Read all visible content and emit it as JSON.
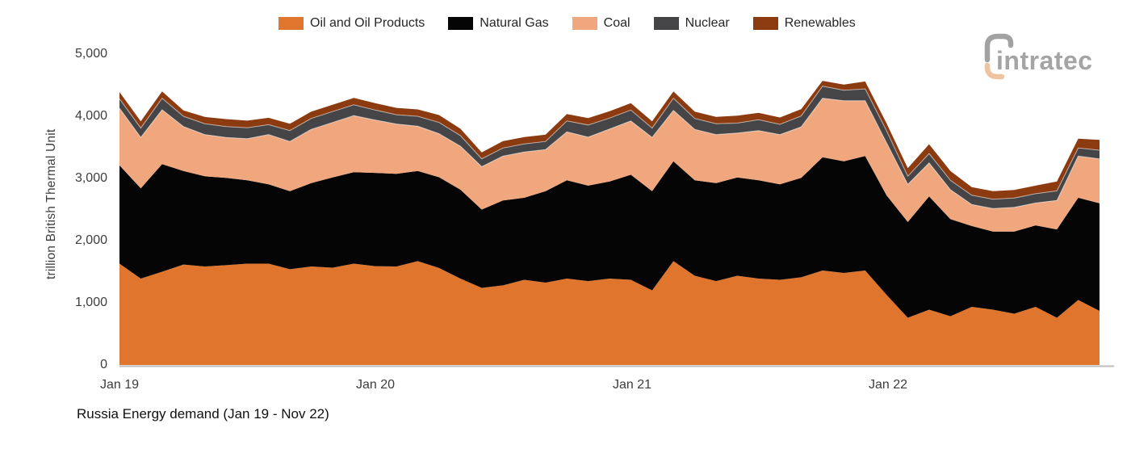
{
  "title": "Russia Energy demand (Jan 19 - Nov 22)",
  "brand": {
    "wordmark": "intratec"
  },
  "legend": [
    {
      "label": "Oil and Oil Products",
      "color": "#e0762e"
    },
    {
      "label": "Natural Gas",
      "color": "#050505"
    },
    {
      "label": "Coal",
      "color": "#f1a77e"
    },
    {
      "label": "Nuclear",
      "color": "#454548"
    },
    {
      "label": "Renewables",
      "color": "#8c3b10"
    }
  ],
  "y_axis": {
    "title": "trillion British Thermal Unit",
    "ticks": [
      "5,000",
      "4,000",
      "3,000",
      "2,000",
      "1,000",
      "0"
    ]
  },
  "x_axis": {
    "ticks": [
      "Jan 19",
      "Jan 20",
      "Jan 21",
      "Jan 22"
    ]
  },
  "chart_data": {
    "type": "area",
    "stacked": true,
    "title": "Russia Energy demand (Jan 19 - Nov 22)",
    "ylabel": "trillion British Thermal Unit",
    "ylim": [
      0,
      5000
    ],
    "grid": false,
    "legend_position": "top-center",
    "x": [
      "Jan 19",
      "Feb 19",
      "Mar 19",
      "Apr 19",
      "May 19",
      "Jun 19",
      "Jul 19",
      "Aug 19",
      "Sep 19",
      "Oct 19",
      "Nov 19",
      "Dec 19",
      "Jan 20",
      "Feb 20",
      "Mar 20",
      "Apr 20",
      "May 20",
      "Jun 20",
      "Jul 20",
      "Aug 20",
      "Sep 20",
      "Oct 20",
      "Nov 20",
      "Dec 20",
      "Jan 21",
      "Feb 21",
      "Mar 21",
      "Apr 21",
      "May 21",
      "Jun 21",
      "Jul 21",
      "Aug 21",
      "Sep 21",
      "Oct 21",
      "Nov 21",
      "Dec 21",
      "Jan 22",
      "Feb 22",
      "Mar 22",
      "Apr 22",
      "May 22",
      "Jun 22",
      "Jul 22",
      "Aug 22",
      "Sep 22",
      "Oct 22",
      "Nov 22"
    ],
    "series": [
      {
        "name": "Oil and Oil Products",
        "color": "#e0762e",
        "values": [
          1630,
          1390,
          1500,
          1615,
          1585,
          1605,
          1630,
          1630,
          1540,
          1585,
          1565,
          1630,
          1590,
          1585,
          1670,
          1560,
          1390,
          1240,
          1280,
          1370,
          1325,
          1390,
          1350,
          1390,
          1370,
          1200,
          1670,
          1435,
          1350,
          1435,
          1390,
          1370,
          1410,
          1520,
          1480,
          1520,
          1130,
          760,
          890,
          785,
          935,
          890,
          825,
          935,
          760,
          1045,
          870
        ]
      },
      {
        "name": "Natural Gas",
        "color": "#050505",
        "values": [
          1580,
          1450,
          1730,
          1505,
          1450,
          1405,
          1340,
          1275,
          1255,
          1340,
          1450,
          1470,
          1500,
          1490,
          1450,
          1460,
          1430,
          1260,
          1365,
          1320,
          1470,
          1580,
          1535,
          1560,
          1690,
          1595,
          1605,
          1535,
          1575,
          1580,
          1580,
          1535,
          1600,
          1820,
          1795,
          1840,
          1600,
          1540,
          1820,
          1560,
          1300,
          1255,
          1320,
          1310,
          1420,
          1645,
          1730
        ]
      },
      {
        "name": "Coal",
        "color": "#f1a77e",
        "values": [
          920,
          820,
          875,
          715,
          670,
          650,
          670,
          800,
          800,
          865,
          885,
          910,
          850,
          800,
          720,
          700,
          700,
          690,
          715,
          735,
          670,
          780,
          780,
          845,
          865,
          865,
          820,
          820,
          780,
          715,
          800,
          800,
          820,
          950,
          975,
          890,
          845,
          605,
          540,
          475,
          345,
          370,
          390,
          360,
          465,
          670,
          715
        ]
      },
      {
        "name": "Nuclear",
        "color": "#454548",
        "values": [
          150,
          150,
          185,
          165,
          175,
          175,
          175,
          160,
          175,
          175,
          175,
          175,
          160,
          150,
          160,
          180,
          170,
          125,
          130,
          130,
          130,
          175,
          195,
          175,
          175,
          150,
          195,
          175,
          175,
          160,
          175,
          165,
          175,
          195,
          170,
          190,
          195,
          130,
          150,
          150,
          150,
          150,
          150,
          150,
          155,
          130,
          140
        ]
      },
      {
        "name": "Renewables",
        "color": "#8c3b10",
        "values": [
          110,
          110,
          110,
          95,
          110,
          120,
          115,
          110,
          110,
          110,
          110,
          110,
          110,
          110,
          110,
          120,
          110,
          105,
          110,
          110,
          110,
          110,
          110,
          110,
          110,
          110,
          110,
          110,
          110,
          120,
          110,
          110,
          110,
          85,
          90,
          120,
          120,
          130,
          150,
          150,
          130,
          130,
          130,
          130,
          150,
          150,
          165
        ]
      }
    ]
  }
}
